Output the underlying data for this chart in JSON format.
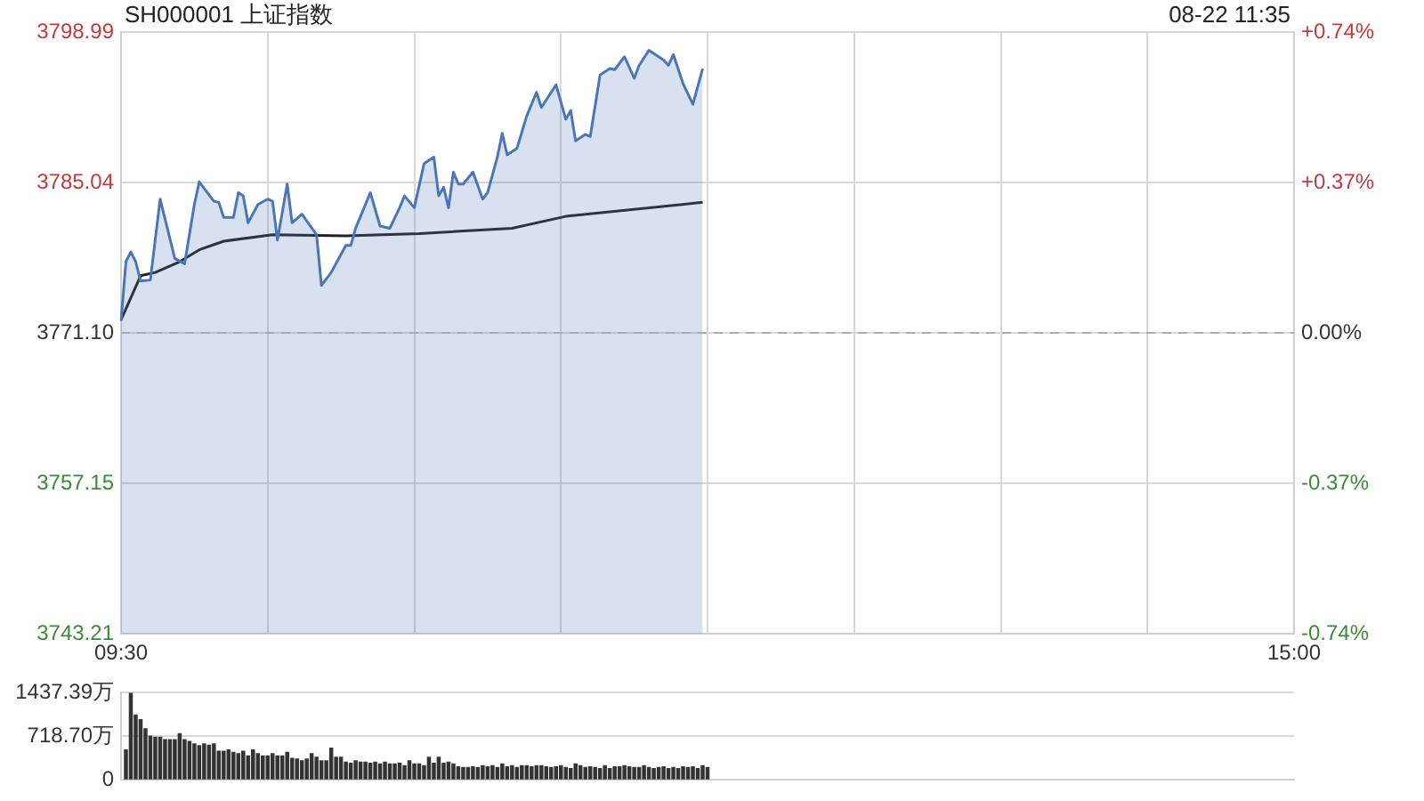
{
  "chart_data": [
    {
      "type": "line",
      "title": "SH000001 上证指数",
      "annotations": [
        "08-22 11:35"
      ],
      "categories": [
        "09:30",
        null,
        null,
        null,
        null,
        null,
        null,
        null,
        null,
        null,
        null,
        null,
        null,
        null,
        null,
        null,
        null,
        null,
        null,
        null,
        null,
        null,
        null,
        null,
        null,
        null,
        null,
        null,
        null,
        null,
        null,
        null,
        null,
        null,
        null,
        null,
        null,
        null,
        null,
        null,
        null,
        null,
        null,
        null,
        null,
        null,
        null,
        null,
        null,
        null,
        null,
        null,
        null,
        null,
        null,
        null,
        null,
        null,
        null,
        null,
        null,
        null,
        null,
        null,
        null,
        null,
        null,
        null,
        null,
        null,
        null,
        null,
        null,
        null,
        null,
        null,
        null,
        null,
        null,
        null,
        null,
        null,
        null,
        null,
        null,
        null,
        null,
        null,
        null,
        null,
        null,
        null,
        null,
        null,
        null,
        null,
        null,
        null,
        null,
        null,
        null,
        null,
        null,
        null,
        null,
        null,
        null,
        null,
        null,
        null,
        null,
        null,
        null,
        null,
        null,
        null,
        null,
        null,
        null,
        null,
        null,
        null,
        null,
        null,
        null,
        null,
        null,
        null,
        null,
        null,
        null,
        null,
        null,
        null,
        null,
        null,
        null,
        null,
        null,
        null,
        null,
        null,
        null,
        null,
        null,
        null,
        null,
        null,
        null,
        null,
        null,
        null,
        null,
        null,
        null,
        null,
        null,
        null,
        null,
        null,
        null,
        null,
        null,
        null,
        null,
        null,
        null,
        null,
        null,
        null,
        null,
        null,
        null,
        null,
        null,
        null,
        null,
        null,
        null,
        null,
        null,
        null,
        null,
        null,
        null,
        null,
        null,
        null,
        null,
        null,
        null,
        null,
        null,
        null,
        null,
        null,
        null,
        null,
        null,
        null,
        null,
        null,
        null,
        null,
        null,
        null,
        null,
        null,
        null,
        null,
        null,
        null,
        null,
        null,
        null,
        null,
        null,
        null,
        null,
        null,
        null,
        null,
        null,
        null,
        null,
        null,
        null,
        null,
        null,
        null,
        null,
        null,
        null,
        null,
        null,
        null,
        null,
        null,
        null,
        null,
        "15:00"
      ],
      "ylim": [
        3743.21,
        3798.99
      ],
      "yticks": [
        3743.21,
        3757.15,
        {
          "value": 3771.1,
          "label": "3771.10"
        },
        3785.04,
        3798.99
      ],
      "y2lim": [
        -0.74,
        0.74
      ],
      "y2ticks": [
        {
          "value": -0.74,
          "label": "-0.74%"
        },
        {
          "value": -0.37,
          "label": "-0.37%"
        },
        {
          "value": 0,
          "label": "0.00%"
        },
        {
          "value": 0.37,
          "label": "+0.37%"
        },
        {
          "value": 0.74,
          "label": "+0.74%"
        }
      ],
      "grid": true,
      "marker": "none",
      "ref_lines": [
        {
          "axis": "y",
          "value": 3771.1,
          "color": "#aaaaaa",
          "line_style": "dashed"
        }
      ],
      "series": [
        {
          "type": "area",
          "color": "#4a76b8",
          "values": [
            3772.2,
            3777.7,
            3778.6,
            3777.7,
            3775.9,
            null,
            3776.0,
            null,
            3783.5,
            null,
            null,
            3778.0,
            null,
            3777.5,
            null,
            3783.0,
            3785.1,
            null,
            null,
            3783.3,
            3783.2,
            3781.8,
            null,
            3781.8,
            3784.1,
            3783.8,
            3781.3,
            null,
            3783.0,
            null,
            3783.5,
            3783.3,
            3779.7,
            null,
            3784.9,
            3781.3,
            null,
            3782.1,
            null,
            null,
            3780.2,
            3775.5,
            null,
            3776.7,
            null,
            null,
            3779.2,
            3779.2,
            3780.8,
            null,
            null,
            3784.1,
            null,
            3781.0,
            null,
            3780.8,
            null,
            3782.7,
            3783.8,
            null,
            3782.7,
            null,
            3786.8,
            null,
            3787.4,
            3783.8,
            3784.6,
            3782.7,
            3786.0,
            3784.9,
            3784.9,
            null,
            3786.0,
            null,
            3783.5,
            3784.1,
            null,
            3787.4,
            3789.6,
            3787.6,
            null,
            3788.2,
            null,
            3791.2,
            null,
            3793.4,
            3792.0,
            null,
            null,
            3794.1,
            null,
            3790.9,
            3791.7,
            3788.9,
            null,
            3789.5,
            3789.3,
            null,
            3795.0,
            null,
            3795.6,
            3795.5,
            null,
            3796.7,
            null,
            3794.7,
            3795.9,
            null,
            3797.3,
            null,
            null,
            3796.4,
            3795.9,
            3796.9,
            null,
            3794.2,
            null,
            3792.3,
            null,
            3795.6,
            null,
            null,
            null,
            null,
            null,
            null,
            null,
            null,
            null,
            null,
            null,
            null,
            null,
            null,
            null,
            null,
            null,
            null,
            null,
            null,
            null,
            null,
            null,
            null,
            null,
            null,
            null,
            null,
            null,
            null,
            null,
            null,
            null,
            null,
            null,
            null,
            null,
            null,
            null,
            null,
            null,
            null,
            null,
            null,
            null,
            null,
            null,
            null,
            null,
            null,
            null,
            null,
            null,
            null,
            null,
            null,
            null,
            null,
            null,
            null,
            null,
            null,
            null,
            null,
            null,
            null,
            null,
            null,
            null,
            null,
            null,
            null,
            null,
            null,
            null,
            null,
            null,
            null,
            null,
            null,
            null,
            null,
            null,
            null,
            null,
            null,
            null,
            null,
            null,
            null,
            null,
            null,
            null,
            null,
            null,
            null,
            null,
            null,
            null,
            null,
            null,
            null,
            null,
            null,
            null,
            null,
            null,
            null,
            null,
            null,
            null,
            null,
            null,
            null,
            null,
            null,
            null,
            null,
            null,
            null,
            null
          ]
        },
        {
          "type": "line",
          "color": "#222222",
          "values": [
            3772.3,
            null,
            null,
            null,
            3776.4,
            null,
            null,
            3776.7,
            null,
            null,
            null,
            null,
            3777.7,
            null,
            null,
            null,
            3778.8,
            null,
            null,
            null,
            null,
            3779.6,
            null,
            null,
            null,
            null,
            null,
            null,
            null,
            null,
            null,
            3780.2,
            null,
            null,
            null,
            null,
            null,
            null,
            null,
            null,
            null,
            null,
            null,
            null,
            null,
            null,
            3780.1,
            null,
            null,
            null,
            null,
            null,
            null,
            null,
            null,
            null,
            null,
            null,
            null,
            null,
            null,
            3780.3,
            null,
            null,
            null,
            null,
            null,
            null,
            null,
            null,
            null,
            null,
            null,
            null,
            null,
            null,
            null,
            null,
            null,
            null,
            3780.8,
            null,
            null,
            null,
            null,
            null,
            null,
            null,
            null,
            null,
            null,
            3781.9,
            null,
            null,
            null,
            null,
            null,
            null,
            null,
            null,
            null,
            null,
            null,
            null,
            null,
            null,
            null,
            null,
            null,
            null,
            null,
            null,
            null,
            null,
            null,
            null,
            null,
            null,
            null,
            3783.2,
            null,
            null,
            null,
            null,
            null,
            null,
            null,
            null,
            null,
            null,
            null,
            null,
            null,
            null,
            null,
            null,
            null,
            null,
            null,
            null,
            null,
            null,
            null,
            null,
            null,
            null,
            null,
            null,
            null,
            null,
            null,
            null,
            null,
            null,
            null,
            null,
            null,
            null,
            null,
            null,
            null,
            null,
            null,
            null,
            null,
            null,
            null,
            null,
            null,
            null,
            null,
            null,
            null,
            null,
            null,
            null,
            null,
            null,
            null,
            null,
            null,
            null,
            null,
            null,
            null,
            null,
            null,
            null,
            null,
            null,
            null,
            null,
            null,
            null,
            null,
            null,
            null,
            null,
            null,
            null,
            null,
            null,
            null,
            null,
            null,
            null,
            null,
            null,
            null,
            null,
            null,
            null,
            null,
            null,
            null,
            null,
            null,
            null,
            null,
            null,
            null,
            null,
            null,
            null,
            null,
            null,
            null,
            null,
            null,
            null,
            null,
            null,
            null,
            null,
            null,
            null,
            null,
            null,
            null,
            null,
            null
          ]
        }
      ]
    },
    {
      "type": "bar",
      "color": "#333333",
      "ylim": [
        0,
        1437.39
      ],
      "yticks": [
        0,
        {
          "value": 718.7,
          "label": "718.70万"
        },
        {
          "value": 1437.39,
          "label": "1437.39万"
        }
      ],
      "grid": "y",
      "tick_labels": "y",
      "categories": [
        null,
        null,
        null,
        null,
        null,
        null,
        null,
        null,
        null,
        null,
        null,
        null,
        null,
        null,
        null,
        null,
        null,
        null,
        null,
        null,
        null,
        null,
        null,
        null,
        null,
        null,
        null,
        null,
        null,
        null,
        null,
        null,
        null,
        null,
        null,
        null,
        null,
        null,
        null,
        null,
        null,
        null,
        null,
        null,
        null,
        null,
        null,
        null,
        null,
        null,
        null,
        null,
        null,
        null,
        null,
        null,
        null,
        null,
        null,
        null,
        null,
        null,
        null,
        null,
        null,
        null,
        null,
        null,
        null,
        null,
        null,
        null,
        null,
        null,
        null,
        null,
        null,
        null,
        null,
        null,
        null,
        null,
        null,
        null,
        null,
        null,
        null,
        null,
        null,
        null,
        null,
        null,
        null,
        null,
        null,
        null,
        null,
        null,
        null,
        null,
        null,
        null,
        null,
        null,
        null,
        null,
        null,
        null,
        null,
        null,
        null,
        null,
        null,
        null,
        null,
        null,
        null,
        null,
        null,
        null,
        null,
        null,
        null,
        null,
        null,
        null,
        null,
        null,
        null,
        null,
        null,
        null,
        null,
        null,
        null,
        null,
        null,
        null,
        null,
        null,
        null,
        null,
        null,
        null,
        null,
        null,
        null,
        null,
        null,
        null,
        null,
        null,
        null,
        null,
        null,
        null,
        null,
        null,
        null,
        null,
        null,
        null,
        null,
        null,
        null,
        null,
        null,
        null,
        null,
        null,
        null,
        null,
        null,
        null,
        null,
        null,
        null,
        null,
        null,
        null,
        null,
        null,
        null,
        null,
        null,
        null,
        null,
        null,
        null,
        null,
        null,
        null,
        null,
        null,
        null,
        null,
        null,
        null,
        null,
        null,
        null,
        null,
        null,
        null,
        null,
        null,
        null,
        null,
        null,
        null,
        null,
        null,
        null,
        null,
        null,
        null,
        null,
        null,
        null,
        null,
        null,
        null,
        null,
        null,
        null,
        null,
        null,
        null,
        null,
        null,
        null,
        null,
        null,
        null,
        null,
        null,
        null,
        null,
        null,
        null,
        null
      ],
      "values": [
        null,
        490,
        1437.39,
        1070,
        990,
        840,
        720,
        700,
        700,
        660,
        660,
        660,
        760,
        660,
        630,
        590,
        560,
        590,
        570,
        590,
        470,
        470,
        490,
        450,
        430,
        470,
        390,
        490,
        430,
        390,
        390,
        430,
        390,
        390,
        450,
        350,
        340,
        310,
        340,
        430,
        370,
        310,
        310,
        520,
        370,
        370,
        290,
        270,
        310,
        290,
        290,
        270,
        290,
        260,
        290,
        260,
        260,
        270,
        230,
        310,
        260,
        260,
        230,
        370,
        270,
        370,
        270,
        290,
        260,
        210,
        200,
        200,
        210,
        200,
        230,
        210,
        230,
        200,
        260,
        210,
        230,
        200,
        230,
        230,
        210,
        230,
        230,
        210,
        200,
        210,
        230,
        200,
        180,
        260,
        230,
        200,
        210,
        200,
        180,
        230,
        180,
        210,
        210,
        230,
        210,
        200,
        200,
        230,
        200,
        180,
        200,
        210,
        180,
        200,
        180,
        210,
        200,
        210,
        180,
        230,
        200,
        null,
        null,
        null,
        null,
        null,
        null,
        null,
        null,
        null,
        null,
        null,
        null,
        null,
        null,
        null,
        null,
        null,
        null,
        null,
        null,
        null,
        null,
        null,
        null,
        null,
        null,
        null,
        null,
        null,
        null,
        null,
        null,
        null,
        null,
        null,
        null,
        null,
        null,
        null,
        null,
        null,
        null,
        null,
        null,
        null,
        null,
        null,
        null,
        null,
        null,
        null,
        null,
        null,
        null,
        null,
        null,
        null,
        null,
        null,
        null,
        null,
        null,
        null,
        null,
        null,
        null,
        null,
        null,
        null,
        null,
        null,
        null,
        null,
        null,
        null,
        null,
        null,
        null,
        null,
        null,
        null,
        null,
        null,
        null,
        null,
        null,
        null,
        null,
        null,
        null,
        null,
        null,
        null,
        null,
        null,
        null,
        null,
        null,
        null,
        null,
        null,
        null,
        null,
        null,
        null,
        null,
        null,
        null,
        null,
        null,
        null,
        null,
        null,
        null,
        null,
        null,
        null,
        null,
        null,
        null
      ]
    }
  ]
}
